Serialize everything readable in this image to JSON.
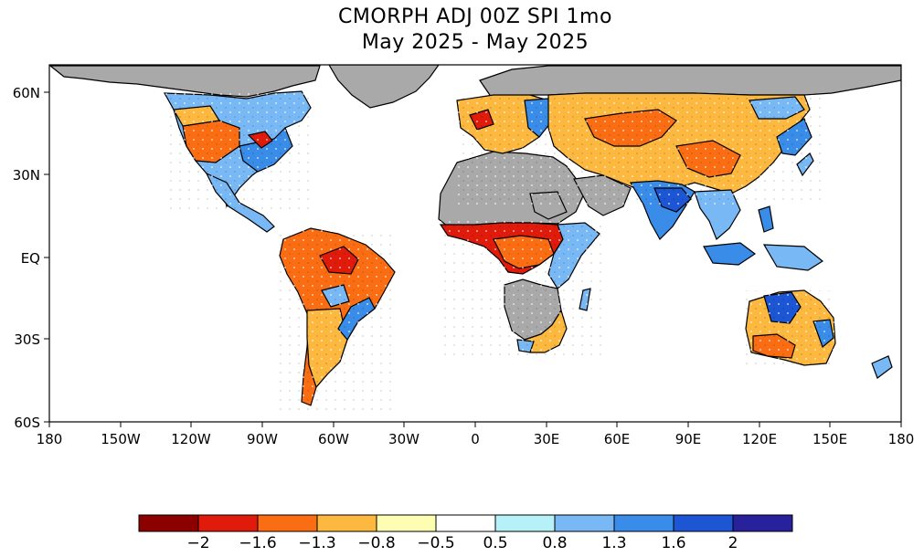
{
  "title": {
    "line1": "CMORPH ADJ 00Z SPI 1mo",
    "line2": "May 2025 - May 2025"
  },
  "axes": {
    "lat_labels": [
      "60N",
      "30N",
      "EQ",
      "30S",
      "60S"
    ],
    "lon_labels": [
      "180",
      "150W",
      "120W",
      "90W",
      "60W",
      "30W",
      "0",
      "30E",
      "60E",
      "90E",
      "120E",
      "150E",
      "180"
    ]
  },
  "map": {
    "lon_range": [
      -180,
      180
    ],
    "lat_range": [
      -60,
      70
    ],
    "no_data_color": "#a9a9a9",
    "ocean_color": "#ffffff",
    "regions": [
      {
        "name": "western-north-america",
        "spi": -1.0
      },
      {
        "name": "central-north-america",
        "spi": -1.5
      },
      {
        "name": "eastern-north-america",
        "spi": 1.4
      },
      {
        "name": "canada",
        "spi": 0.9
      },
      {
        "name": "amazonia",
        "spi": -1.2
      },
      {
        "name": "southern-south-america",
        "spi": -0.9
      },
      {
        "name": "southeast-brazil",
        "spi": 1.5
      },
      {
        "name": "west-africa-sahel",
        "spi": -1.7
      },
      {
        "name": "east-africa",
        "spi": 1.0
      },
      {
        "name": "southern-africa",
        "spi": -0.6
      },
      {
        "name": "europe",
        "spi": -1.0
      },
      {
        "name": "eastern-europe",
        "spi": 1.4
      },
      {
        "name": "central-asia",
        "spi": -1.3
      },
      {
        "name": "south-asia",
        "spi": 1.8
      },
      {
        "name": "east-asia",
        "spi": -0.9
      },
      {
        "name": "southeast-asia",
        "spi": 1.2
      },
      {
        "name": "northern-australia",
        "spi": 1.7
      },
      {
        "name": "southern-australia",
        "spi": -1.0
      }
    ]
  },
  "legend": {
    "colors": [
      "#8c0000",
      "#e11b0b",
      "#fa6d13",
      "#fcb83f",
      "#fefeb3",
      "#ffffff",
      "#b6f0f9",
      "#78b8f5",
      "#3a8ce9",
      "#1c56d4",
      "#27219b"
    ],
    "labels": [
      "-2",
      "-1.6",
      "-1.3",
      "-0.8",
      "-0.5",
      "0.5",
      "0.8",
      "1.3",
      "1.6",
      "2"
    ]
  }
}
